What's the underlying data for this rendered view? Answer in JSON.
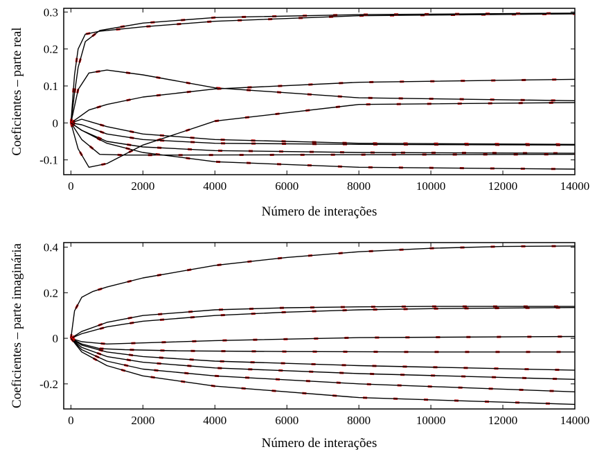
{
  "chart_data": [
    {
      "type": "line",
      "xlabel": "Número de interações",
      "ylabel": "Coeficientes – parte real",
      "xlim": [
        -200,
        14000
      ],
      "ylim": [
        -0.14,
        0.31
      ],
      "xticks": [
        0,
        2000,
        4000,
        6000,
        8000,
        10000,
        12000,
        14000
      ],
      "yticks": [
        -0.1,
        0,
        0.1,
        0.2,
        0.3
      ],
      "ytick_labels": [
        "-0.1",
        "0",
        "0.1",
        "0.2",
        "0.3"
      ],
      "grid": false,
      "line_color": "#000000",
      "noise_color": "#cc0000",
      "series": [
        {
          "x": [
            0,
            100,
            200,
            400,
            800,
            2000,
            4000,
            8000,
            14000
          ],
          "y": [
            0,
            0.13,
            0.2,
            0.24,
            0.248,
            0.26,
            0.275,
            0.29,
            0.295
          ]
        },
        {
          "x": [
            0,
            100,
            200,
            400,
            800,
            2000,
            4000,
            8000,
            14000
          ],
          "y": [
            0,
            0.08,
            0.15,
            0.22,
            0.25,
            0.27,
            0.285,
            0.293,
            0.297
          ]
        },
        {
          "x": [
            0,
            200,
            500,
            1000,
            2000,
            4000,
            8000,
            14000
          ],
          "y": [
            0,
            0.09,
            0.135,
            0.143,
            0.13,
            0.095,
            0.068,
            0.06
          ]
        },
        {
          "x": [
            0,
            500,
            1000,
            2000,
            4000,
            8000,
            14000
          ],
          "y": [
            0,
            0.035,
            0.05,
            0.07,
            0.092,
            0.11,
            0.118
          ]
        },
        {
          "x": [
            0,
            200,
            500,
            1000,
            2000,
            4000,
            8000,
            14000
          ],
          "y": [
            0,
            -0.07,
            -0.12,
            -0.11,
            -0.06,
            0.005,
            0.05,
            0.055
          ]
        },
        {
          "x": [
            0,
            300,
            1000,
            2000,
            4000,
            8000,
            14000
          ],
          "y": [
            0,
            0.01,
            -0.01,
            -0.03,
            -0.045,
            -0.055,
            -0.058
          ]
        },
        {
          "x": [
            0,
            300,
            1000,
            2000,
            4000,
            8000,
            14000
          ],
          "y": [
            0,
            -0.005,
            -0.03,
            -0.045,
            -0.055,
            -0.058,
            -0.06
          ]
        },
        {
          "x": [
            0,
            300,
            1000,
            2000,
            4000,
            8000,
            14000
          ],
          "y": [
            0,
            -0.02,
            -0.05,
            -0.065,
            -0.075,
            -0.08,
            -0.082
          ]
        },
        {
          "x": [
            0,
            300,
            800,
            1500,
            3000,
            8000,
            14000
          ],
          "y": [
            0,
            -0.045,
            -0.085,
            -0.087,
            -0.087,
            -0.086,
            -0.085
          ]
        },
        {
          "x": [
            0,
            300,
            1000,
            2000,
            4000,
            8000,
            14000
          ],
          "y": [
            0,
            -0.02,
            -0.055,
            -0.08,
            -0.105,
            -0.12,
            -0.125
          ]
        }
      ]
    },
    {
      "type": "line",
      "xlabel": "Número de interações",
      "ylabel": "Coeficientes – parte imaginária",
      "xlim": [
        -200,
        14000
      ],
      "ylim": [
        -0.31,
        0.42
      ],
      "xticks": [
        0,
        2000,
        4000,
        6000,
        8000,
        10000,
        12000,
        14000
      ],
      "yticks": [
        -0.2,
        0,
        0.2,
        0.4
      ],
      "ytick_labels": [
        "-0.2",
        "0",
        "0.2",
        "0.4"
      ],
      "grid": false,
      "line_color": "#000000",
      "noise_color": "#cc0000",
      "series": [
        {
          "x": [
            0,
            100,
            300,
            600,
            1000,
            2000,
            4000,
            6000,
            8000,
            10000,
            12000,
            14000
          ],
          "y": [
            0,
            0.12,
            0.18,
            0.205,
            0.225,
            0.265,
            0.32,
            0.355,
            0.38,
            0.395,
            0.403,
            0.405
          ]
        },
        {
          "x": [
            0,
            300,
            1000,
            2000,
            4000,
            6000,
            8000,
            10000,
            14000
          ],
          "y": [
            0,
            0.03,
            0.07,
            0.1,
            0.125,
            0.134,
            0.138,
            0.14,
            0.14
          ]
        },
        {
          "x": [
            0,
            300,
            1000,
            2000,
            4000,
            6000,
            8000,
            10000,
            14000
          ],
          "y": [
            0,
            0.02,
            0.05,
            0.075,
            0.1,
            0.115,
            0.125,
            0.13,
            0.135
          ]
        },
        {
          "x": [
            0,
            300,
            1000,
            2000,
            4000,
            8000,
            14000
          ],
          "y": [
            0,
            -0.015,
            -0.025,
            -0.02,
            -0.01,
            0.003,
            0.008
          ]
        },
        {
          "x": [
            0,
            300,
            800,
            1500,
            3000,
            6000,
            10000,
            14000
          ],
          "y": [
            0,
            -0.025,
            -0.045,
            -0.05,
            -0.055,
            -0.058,
            -0.06,
            -0.06
          ]
        },
        {
          "x": [
            0,
            300,
            1000,
            2000,
            4000,
            8000,
            14000
          ],
          "y": [
            0,
            -0.03,
            -0.06,
            -0.08,
            -0.1,
            -0.12,
            -0.14
          ]
        },
        {
          "x": [
            0,
            300,
            1000,
            2000,
            4000,
            8000,
            14000
          ],
          "y": [
            0,
            -0.04,
            -0.08,
            -0.105,
            -0.13,
            -0.155,
            -0.18
          ]
        },
        {
          "x": [
            0,
            300,
            1000,
            2000,
            4000,
            8000,
            14000
          ],
          "y": [
            0,
            -0.05,
            -0.1,
            -0.135,
            -0.165,
            -0.2,
            -0.235
          ]
        },
        {
          "x": [
            0,
            300,
            1000,
            2000,
            4000,
            8000,
            14000
          ],
          "y": [
            0,
            -0.06,
            -0.12,
            -0.165,
            -0.21,
            -0.26,
            -0.29
          ]
        }
      ]
    }
  ]
}
